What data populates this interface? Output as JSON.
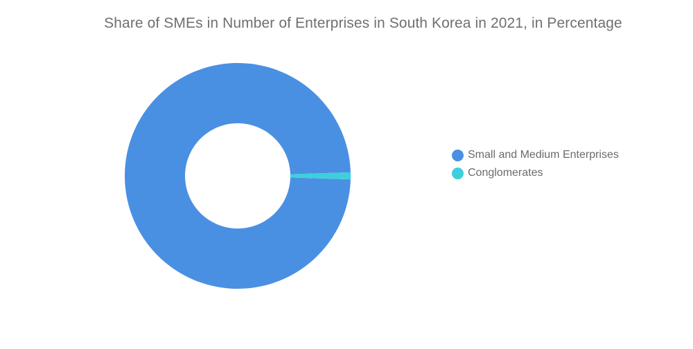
{
  "chart_data": {
    "type": "pie",
    "variant": "donut",
    "title": "Share of SMEs in Number of Enterprises in South Korea in 2021, in Percentage",
    "categories": [
      "Small and Medium Enterprises",
      "Conglomerates"
    ],
    "values": [
      99,
      1
    ],
    "colors": [
      "#4a90e2",
      "#3dcfdb"
    ],
    "legend_position": "right",
    "data_labels": false
  }
}
